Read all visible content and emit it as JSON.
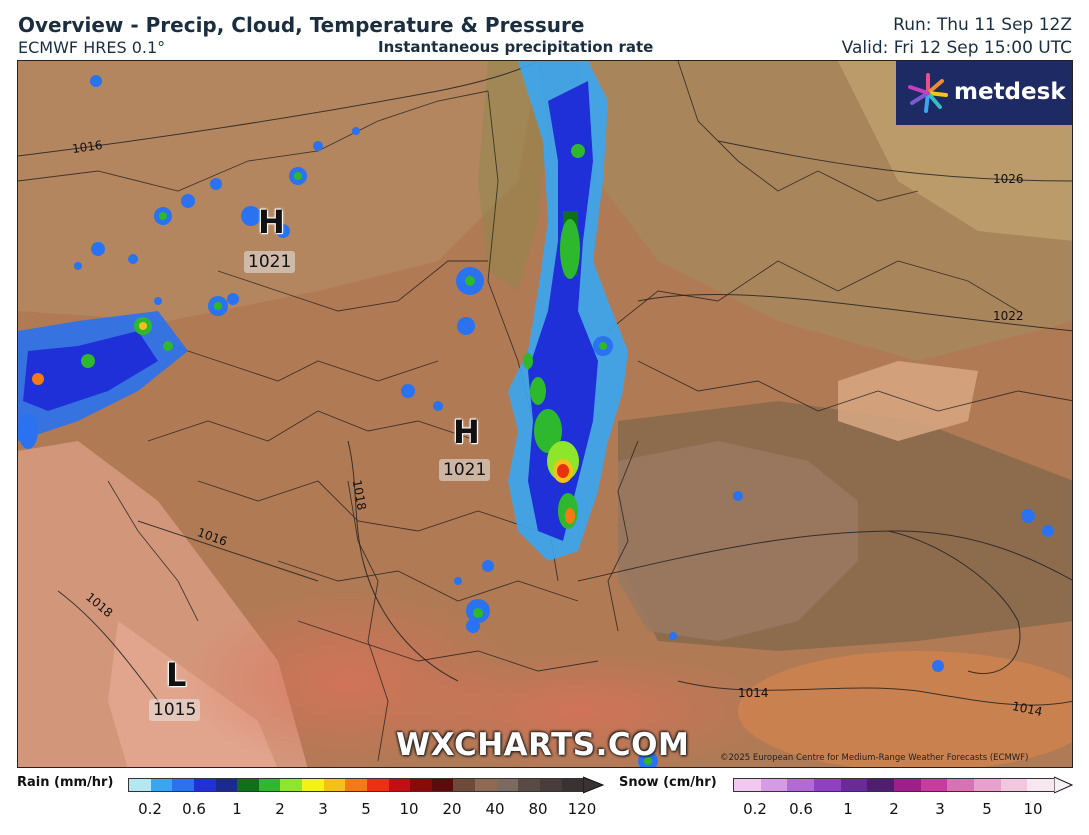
{
  "header": {
    "title": "Overview - Precip, Cloud, Temperature & Pressure",
    "model": "ECMWF HRES 0.1°",
    "parameter": "Instantaneous precipitation rate",
    "run": "Run: Thu 11 Sep 12Z",
    "valid": "Valid: Fri 12 Sep 15:00 UTC"
  },
  "brand": {
    "logo_text": "metdesk",
    "watermark": "WXCHARTS.COM"
  },
  "copyright": "©2025 European Centre for Medium-Range Weather Forecasts (ECMWF)",
  "pressure_centers": [
    {
      "type": "H",
      "value": "1021"
    },
    {
      "type": "H",
      "value": "1021"
    },
    {
      "type": "L",
      "value": "1015"
    }
  ],
  "isobar_labels": [
    "1016",
    "1026",
    "1022",
    "1018",
    "1016",
    "1018",
    "1014",
    "1014"
  ],
  "rain_legend": {
    "title": "Rain (mm/hr)",
    "ticks": [
      "0.2",
      "0.6",
      "1",
      "2",
      "3",
      "5",
      "10",
      "20",
      "40",
      "80",
      "120"
    ],
    "colors": [
      "#b4e8f0",
      "#3aa6f2",
      "#2a72f0",
      "#1f30d8",
      "#1a2a90",
      "#10701a",
      "#2eb82e",
      "#8ee62a",
      "#f2f21a",
      "#f5c01a",
      "#f57a14",
      "#e83212",
      "#c21010",
      "#8a0a0a",
      "#5c0a0a",
      "#6e4a3a",
      "#8e6a55",
      "#7a6a60",
      "#5a4a44",
      "#4a3c3a",
      "#3a3232"
    ]
  },
  "snow_legend": {
    "title": "Snow (cm/hr)",
    "ticks": [
      "0.2",
      "0.6",
      "1",
      "2",
      "3",
      "5",
      "10"
    ],
    "colors": [
      "#f0c8f0",
      "#d69ae6",
      "#b46ad6",
      "#9040c0",
      "#6a2a9a",
      "#501e6e",
      "#a01e8a",
      "#c83ca0",
      "#d872b4",
      "#e8a0cc",
      "#f2c8e0",
      "#f8e6f0"
    ]
  },
  "colors": {
    "header_text": "#1b2e40",
    "logo_bg": "#1d2a63"
  }
}
